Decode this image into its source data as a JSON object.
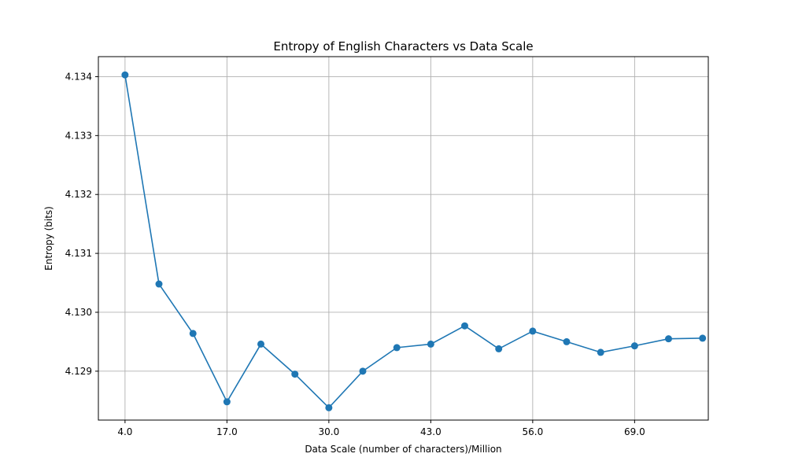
{
  "chart_data": {
    "type": "line",
    "title": "Entropy of English Characters vs Data Scale",
    "xlabel": "Data Scale (number of characters)/Million",
    "ylabel": "Entropy (bits)",
    "x_ticks": [
      "4.0",
      "17.0",
      "30.0",
      "43.0",
      "56.0",
      "69.0"
    ],
    "y_ticks": [
      "4.129",
      "4.130",
      "4.131",
      "4.132",
      "4.133",
      "4.134"
    ],
    "xlim": [
      0.6,
      78.4
    ],
    "ylim": [
      4.12817,
      4.13434
    ],
    "grid": true,
    "color": "#1f77b4",
    "series": [
      {
        "x": [
          4,
          8.33,
          12.67,
          17,
          21.33,
          25.67,
          30,
          34.33,
          38.67,
          43,
          47.33,
          51.67,
          56,
          60.33,
          64.67,
          69,
          73.33,
          77.67
        ],
        "y": [
          4.13403,
          4.13048,
          4.12964,
          4.12848,
          4.12946,
          4.12895,
          4.12838,
          4.129,
          4.1294,
          4.12946,
          4.12977,
          4.12938,
          4.12968,
          4.1295,
          4.12932,
          4.12943,
          4.12955,
          4.12956
        ]
      }
    ]
  }
}
